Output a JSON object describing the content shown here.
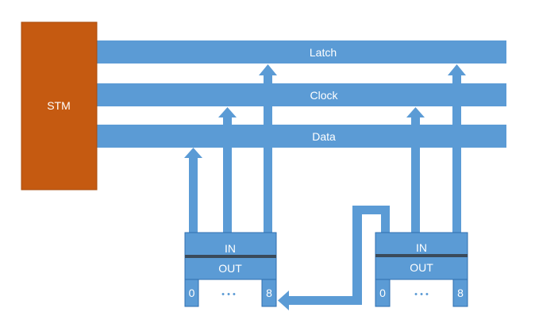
{
  "stm": {
    "label": "STM",
    "color": "#c55a11"
  },
  "buses": {
    "latch": "Latch",
    "clock": "Clock",
    "data": "Data",
    "color": "#5b9bd5"
  },
  "chips": [
    {
      "in_label": "IN",
      "out_label": "OUT",
      "pin_first": "0",
      "pin_last": "8",
      "ellipsis": "• • •"
    },
    {
      "in_label": "IN",
      "out_label": "OUT",
      "pin_first": "0",
      "pin_last": "8",
      "ellipsis": "• • •"
    }
  ]
}
